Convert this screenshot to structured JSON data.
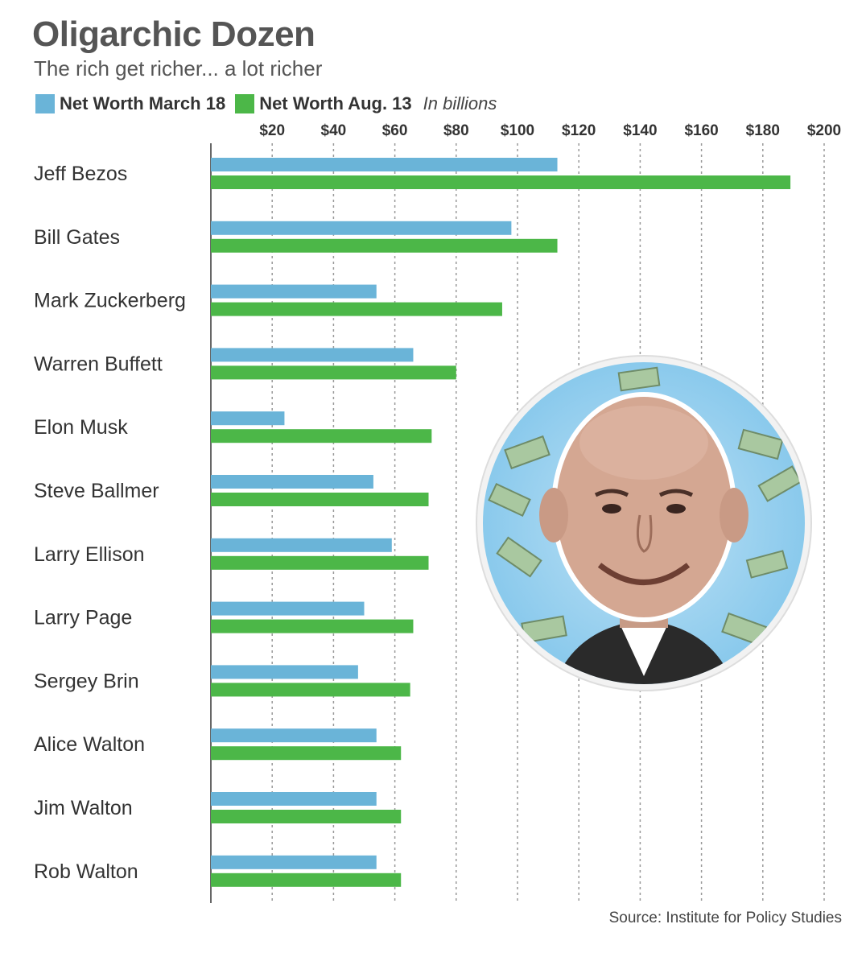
{
  "colors": {
    "march": "#6ab4d8",
    "aug": "#4cb748",
    "grid": "#999999",
    "axis": "#666666"
  },
  "legend": {
    "march_label": "Net Worth March 18",
    "aug_label": "Net Worth Aug. 13",
    "unit": "In billions"
  },
  "source": "Source: Institute for Policy Studies",
  "chart_data": {
    "type": "bar",
    "orientation": "horizontal",
    "title": "Oligarchic Dozen",
    "subtitle": "The rich get richer... a lot richer",
    "x_ticks": [
      "$20",
      "$40",
      "$60",
      "$80",
      "$100",
      "$120",
      "$140",
      "$160",
      "$180",
      "$200"
    ],
    "x_tick_values": [
      20,
      40,
      60,
      80,
      100,
      120,
      140,
      160,
      180,
      200
    ],
    "xlim": [
      0,
      200
    ],
    "grid": true,
    "legend_position": "top-left",
    "categories": [
      "Jeff Bezos",
      "Bill Gates",
      "Mark Zuckerberg",
      "Warren Buffett",
      "Elon Musk",
      "Steve Ballmer",
      "Larry Ellison",
      "Larry Page",
      "Sergey Brin",
      "Alice Walton",
      "Jim Walton",
      "Rob Walton"
    ],
    "series": [
      {
        "name": "Net Worth March 18",
        "values": [
          113,
          98,
          54,
          66,
          24,
          53,
          59,
          50,
          48,
          54,
          54,
          54
        ]
      },
      {
        "name": "Net Worth Aug. 13",
        "values": [
          189,
          113,
          95,
          80,
          72,
          71,
          71,
          66,
          65,
          62,
          62,
          62
        ]
      }
    ]
  }
}
